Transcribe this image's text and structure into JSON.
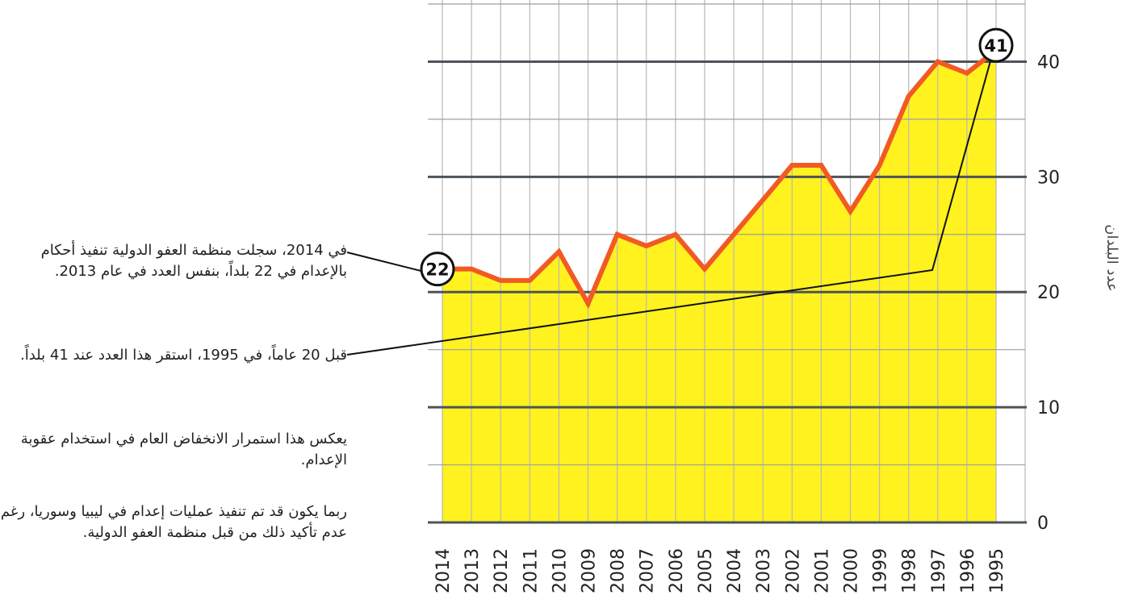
{
  "chart_data": {
    "type": "area",
    "y_label": "عدد البلدان",
    "categories": [
      "2014",
      "2013",
      "2012",
      "2011",
      "2010",
      "2009",
      "2008",
      "2007",
      "2006",
      "2005",
      "2004",
      "2003",
      "2002",
      "2001",
      "2000",
      "1999",
      "1998",
      "1997",
      "1996",
      "1995"
    ],
    "values": [
      22,
      22,
      21,
      21,
      23.5,
      19,
      25,
      24,
      25,
      22,
      25,
      28,
      31,
      31,
      27,
      31,
      37,
      40,
      39,
      41
    ],
    "line_color": "#f15a24",
    "fill_color": "#fff21f",
    "ylim": [
      0,
      45
    ],
    "yticks": [
      0,
      10,
      20,
      30,
      40
    ],
    "grid": true,
    "annotations": [
      "في 2014، سجلت منظمة العفو الدولية تنفيذ أحكام بالإعدام في 22 بلداً، بنفس العدد في عام 2013.",
      "قبل 20 عاماً، في 1995، استقر هذا العدد عند 41 بلداً.",
      "يعكس هذا استمرار الانخفاض العام في استخدام عقوبة الإعدام.",
      "ربما يكون قد تم تنفيذ عمليات إعدام في ليبيا وسوريا، رغم عدم تأكيد ذلك من قبل منظمة العفو الدولية."
    ]
  }
}
